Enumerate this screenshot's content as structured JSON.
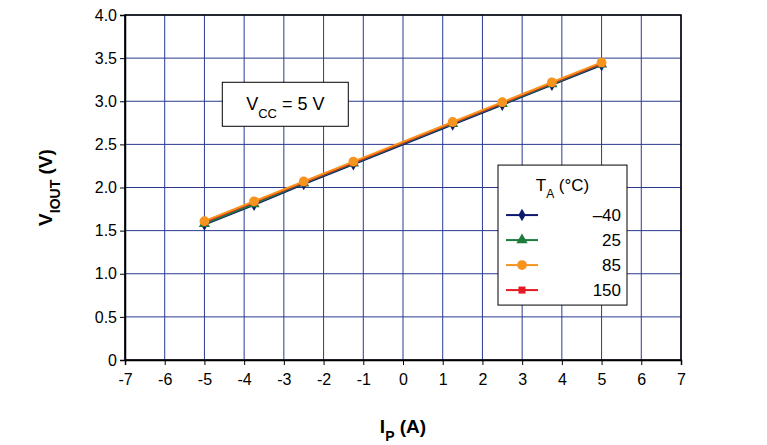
{
  "chart_data": {
    "type": "line",
    "x_label": "IP (A)",
    "y_label": "VIOUT (V)",
    "annotation": "VCC = 5 V",
    "legend_title": "TA (°C)",
    "x": [
      -5,
      -3.75,
      -2.5,
      -1.25,
      1.25,
      2.5,
      3.75,
      5
    ],
    "series": [
      {
        "name": "–40",
        "color": "#0b1a6e",
        "marker": "diamond",
        "values": [
          1.57,
          1.8,
          2.04,
          2.27,
          2.73,
          2.96,
          3.19,
          3.42
        ]
      },
      {
        "name": "25",
        "color": "#1e7b3c",
        "marker": "triangle",
        "values": [
          1.58,
          1.81,
          2.05,
          2.28,
          2.74,
          2.97,
          3.2,
          3.43
        ]
      },
      {
        "name": "150",
        "color": "#e41b23",
        "marker": "square",
        "values": [
          1.6,
          1.83,
          2.06,
          2.29,
          2.75,
          2.98,
          3.21,
          3.44
        ]
      },
      {
        "name": "85",
        "color": "#f7941d",
        "marker": "circle",
        "values": [
          1.61,
          1.84,
          2.07,
          2.3,
          2.76,
          2.99,
          3.22,
          3.45
        ]
      }
    ],
    "xlim": [
      -7,
      7
    ],
    "xticks": [
      -7,
      -6,
      -5,
      -4,
      -3,
      -2,
      -1,
      0,
      1,
      2,
      3,
      4,
      5,
      6,
      7
    ],
    "ylim": [
      0,
      4
    ],
    "yticks": [
      0,
      0.5,
      {
        "value": 1,
        "label": "1.0"
      },
      1.5,
      {
        "value": 2,
        "label": "2.0"
      },
      2.5,
      {
        "value": 3,
        "label": "3.0"
      },
      3.5,
      {
        "value": 4,
        "label": "4.0"
      }
    ],
    "grid": true,
    "legend": "right"
  }
}
